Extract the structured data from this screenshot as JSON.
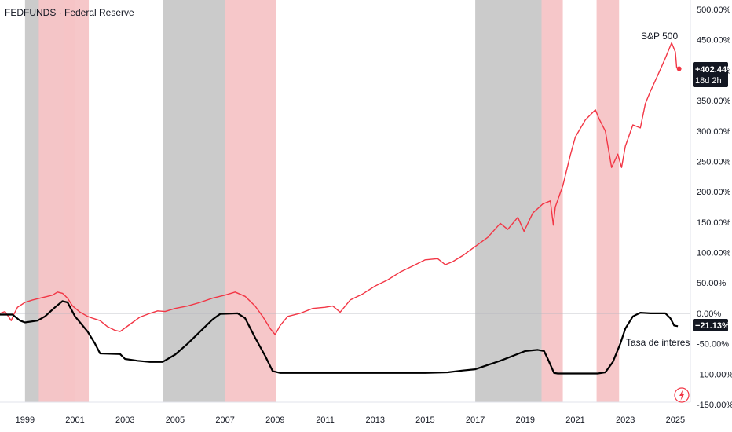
{
  "header": {
    "title": "FEDFUNDS · Federal Reserve"
  },
  "chart_data": {
    "type": "line",
    "title": "FEDFUNDS · Federal Reserve",
    "xlabel": "",
    "ylabel": "",
    "x_range": [
      1998.0,
      2025.6
    ],
    "ylim": [
      -150,
      500
    ],
    "y_ticks": [
      500,
      450,
      400,
      350,
      300,
      250,
      200,
      150,
      100,
      50,
      0,
      -50,
      -100,
      -150
    ],
    "y_tick_labels": [
      "500.00%",
      "450.00%",
      "400.00%",
      "350.00%",
      "300.00%",
      "250.00%",
      "200.00%",
      "150.00%",
      "100.00%",
      "50.00%",
      "0.00%",
      "-50.00%",
      "-100.00%",
      "-150.00%"
    ],
    "x_ticks": [
      1999,
      2001,
      2003,
      2005,
      2007,
      2009,
      2011,
      2013,
      2015,
      2017,
      2019,
      2021,
      2023,
      2025
    ],
    "x_tick_labels": [
      "1999",
      "2001",
      "2003",
      "2005",
      "2007",
      "2009",
      "2011",
      "2013",
      "2015",
      "2017",
      "2019",
      "2021",
      "2023",
      "2025"
    ],
    "grid": false,
    "zero_line": 0,
    "shaded_regions": [
      {
        "start": 1999.0,
        "end": 2000.55,
        "color": "#c8c8c8",
        "kind": "rate-hike"
      },
      {
        "start": 1999.55,
        "end": 2001.0,
        "color": "#f6c4c6",
        "kind": "recession"
      },
      {
        "start": 2000.55,
        "end": 2001.55,
        "color": "#f6c4c6",
        "kind": "recession"
      },
      {
        "start": 2004.5,
        "end": 2007.0,
        "color": "#c8c8c8",
        "kind": "rate-hike"
      },
      {
        "start": 2007.0,
        "end": 2009.05,
        "color": "#f6c4c6",
        "kind": "recession"
      },
      {
        "start": 2017.0,
        "end": 2019.65,
        "color": "#c8c8c8",
        "kind": "rate-hike"
      },
      {
        "start": 2019.65,
        "end": 2020.5,
        "color": "#f6c4c6",
        "kind": "recession"
      },
      {
        "start": 2021.85,
        "end": 2022.75,
        "color": "#f6c4c6",
        "kind": "recession"
      }
    ],
    "series": [
      {
        "name": "S&P 500",
        "color": "#f23645",
        "x": [
          1998.0,
          1998.2,
          1998.45,
          1998.55,
          1998.7,
          1999.0,
          1999.3,
          1999.6,
          1999.9,
          2000.1,
          2000.3,
          2000.5,
          2000.7,
          2000.9,
          2001.2,
          2001.5,
          2001.7,
          2002.0,
          2002.3,
          2002.6,
          2002.8,
          2003.0,
          2003.3,
          2003.6,
          2004.0,
          2004.3,
          2004.6,
          2005.0,
          2005.5,
          2006.0,
          2006.5,
          2007.0,
          2007.4,
          2007.8,
          2008.2,
          2008.5,
          2008.8,
          2009.0,
          2009.2,
          2009.5,
          2010.0,
          2010.5,
          2011.0,
          2011.3,
          2011.6,
          2012.0,
          2012.5,
          2013.0,
          2013.5,
          2014.0,
          2014.5,
          2015.0,
          2015.5,
          2015.8,
          2016.1,
          2016.5,
          2017.0,
          2017.5,
          2018.0,
          2018.3,
          2018.7,
          2018.95,
          2019.3,
          2019.7,
          2020.0,
          2020.12,
          2020.2,
          2020.5,
          2020.8,
          2021.0,
          2021.4,
          2021.8,
          2021.95,
          2022.2,
          2022.45,
          2022.7,
          2022.85,
          2023.0,
          2023.3,
          2023.6,
          2023.8,
          2024.0,
          2024.3,
          2024.6,
          2024.85,
          2025.0,
          2025.05,
          2025.15
        ],
        "values": [
          0,
          3,
          -12,
          -2,
          10,
          18,
          22,
          25,
          28,
          30,
          35,
          33,
          25,
          12,
          2,
          -5,
          -8,
          -12,
          -22,
          -28,
          -30,
          -24,
          -15,
          -6,
          0,
          4,
          3,
          8,
          12,
          18,
          25,
          30,
          35,
          28,
          12,
          -5,
          -25,
          -35,
          -20,
          -5,
          0,
          8,
          10,
          12,
          2,
          22,
          32,
          45,
          55,
          68,
          78,
          88,
          90,
          80,
          85,
          95,
          110,
          125,
          148,
          138,
          158,
          135,
          165,
          180,
          185,
          145,
          175,
          210,
          260,
          290,
          318,
          335,
          320,
          300,
          240,
          262,
          240,
          275,
          310,
          305,
          345,
          365,
          392,
          420,
          445,
          430,
          405,
          402.44
        ],
        "label": "S&P 500",
        "last_value_label": "+402.44%",
        "countdown": "18d 2h"
      },
      {
        "name": "Tasa de interes",
        "color": "#000000",
        "x": [
          1998.0,
          1998.5,
          1998.8,
          1999.0,
          1999.5,
          1999.8,
          2000.2,
          2000.5,
          2000.7,
          2001.0,
          2001.5,
          2001.8,
          2002.0,
          2002.8,
          2003.0,
          2003.5,
          2004.0,
          2004.5,
          2005.0,
          2005.5,
          2006.0,
          2006.5,
          2006.8,
          2007.5,
          2007.8,
          2008.2,
          2008.6,
          2008.9,
          2009.2,
          2011.0,
          2015.0,
          2015.9,
          2016.5,
          2017.0,
          2017.5,
          2018.0,
          2018.5,
          2019.0,
          2019.5,
          2019.75,
          2019.9,
          2020.15,
          2020.3,
          2021.9,
          2022.2,
          2022.5,
          2022.8,
          2023.0,
          2023.3,
          2023.6,
          2024.0,
          2024.6,
          2024.8,
          2024.95,
          2025.1
        ],
        "values": [
          -2,
          -2,
          -12,
          -15,
          -12,
          -5,
          10,
          20,
          18,
          -5,
          -30,
          -50,
          -66,
          -67,
          -75,
          -78,
          -80,
          -80,
          -68,
          -50,
          -30,
          -10,
          -1,
          0,
          -8,
          -40,
          -70,
          -95,
          -98,
          -98,
          -98,
          -97,
          -94,
          -92,
          -85,
          -78,
          -70,
          -62,
          -60,
          -62,
          -75,
          -98,
          -99,
          -99,
          -97,
          -80,
          -50,
          -25,
          -5,
          1,
          0,
          0,
          -8,
          -20,
          -21.13
        ],
        "label": "Tasa de interes",
        "last_value_label": "−21.13%"
      }
    ]
  },
  "badges": {
    "sp500_value": "+402.44%",
    "sp500_countdown": "18d 2h",
    "rate_value": "−21.13%"
  },
  "annotations": {
    "sp500_label": "S&P 500",
    "rate_label": "Tasa de interes"
  },
  "toolbar": {
    "flash_icon": "lightning-icon",
    "accent": "#f23645"
  }
}
